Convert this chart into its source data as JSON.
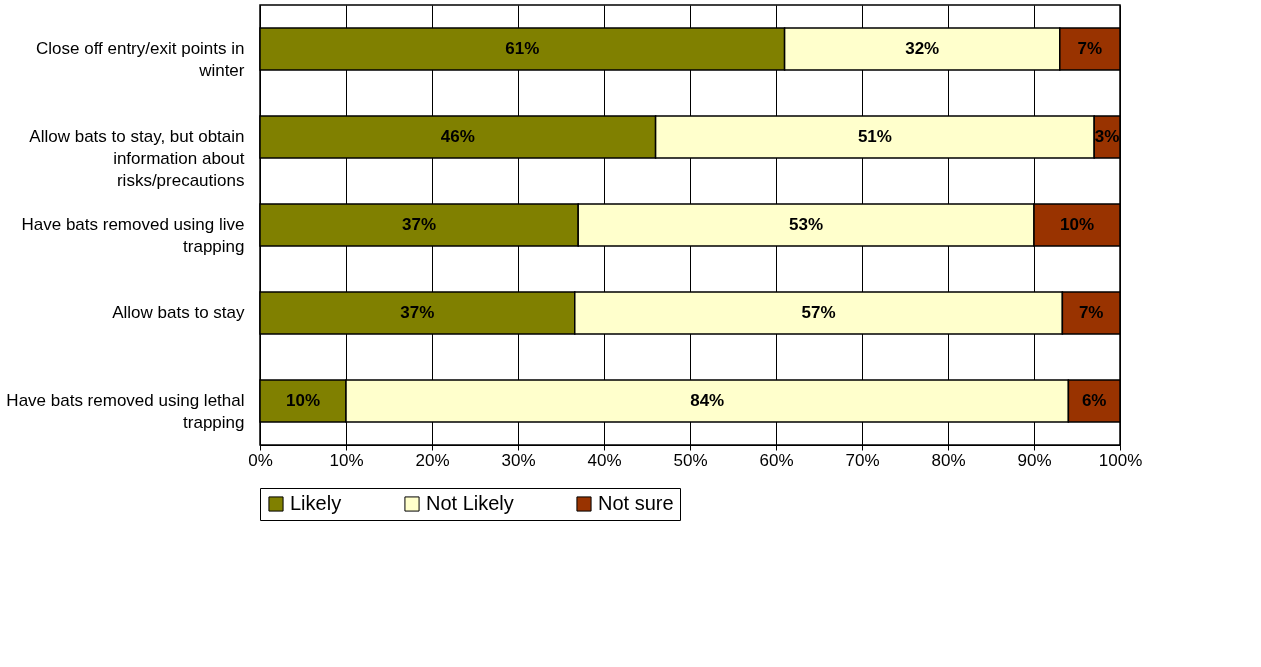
{
  "chart_data": {
    "type": "bar",
    "orientation": "horizontal",
    "stacked": true,
    "categories": [
      "Close off entry/exit points in winter",
      "Allow bats to stay, but obtain information about risks/precautions",
      "Have bats removed using live trapping",
      "Allow bats to stay",
      "Have bats removed using lethal trapping"
    ],
    "series": [
      {
        "name": "Likely",
        "color": "#808000",
        "values": [
          61,
          46,
          37,
          36.6,
          10
        ],
        "value_labels": [
          "61%",
          "46%",
          "37%",
          "37%",
          "10%"
        ]
      },
      {
        "name": "Not Likely",
        "color": "#ffffcc",
        "values": [
          32,
          51,
          53,
          56.7,
          84
        ],
        "value_labels": [
          "32%",
          "51%",
          "53%",
          "57%",
          "84%"
        ]
      },
      {
        "name": "Not sure",
        "color": "#993300",
        "values": [
          7,
          3,
          10,
          6.7,
          6
        ],
        "value_labels": [
          "7%",
          "3%",
          "10%",
          "7%",
          "6%"
        ]
      }
    ],
    "xlim": [
      0,
      100
    ],
    "xticks": [
      {
        "value": 0,
        "label": "0%"
      },
      {
        "value": 10,
        "label": "10%"
      },
      {
        "value": 20,
        "label": "20%"
      },
      {
        "value": 30,
        "label": "30%"
      },
      {
        "value": 40,
        "label": "40%"
      },
      {
        "value": 50,
        "label": "50%"
      },
      {
        "value": 60,
        "label": "60%"
      },
      {
        "value": 70,
        "label": "70%"
      },
      {
        "value": 80,
        "label": "80%"
      },
      {
        "value": 90,
        "label": "90%"
      },
      {
        "value": 100,
        "label": "100%"
      }
    ],
    "grid": "x",
    "legend": "bottom"
  }
}
